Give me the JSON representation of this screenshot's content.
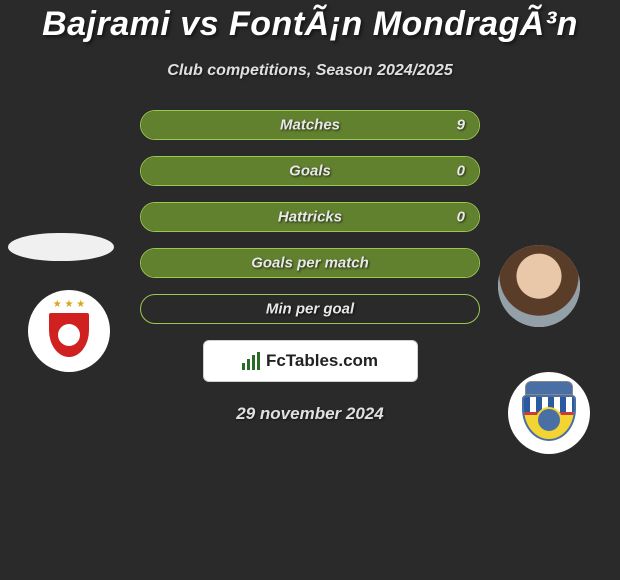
{
  "title": "Bajrami vs FontÃ¡n MondragÃ³n",
  "subtitle": "Club competitions, Season 2024/2025",
  "date": "29 november 2024",
  "brand": "FcTables.com",
  "colors": {
    "background": "#2a2a2a",
    "bar_border": "#9ac84f",
    "bar_fill": "#62812f",
    "text": "#ffffff"
  },
  "stats": [
    {
      "label": "Matches",
      "value": "9",
      "fill_pct": 100,
      "show_value": true
    },
    {
      "label": "Goals",
      "value": "0",
      "fill_pct": 100,
      "show_value": true
    },
    {
      "label": "Hattricks",
      "value": "0",
      "fill_pct": 100,
      "show_value": true
    },
    {
      "label": "Goals per match",
      "value": "",
      "fill_pct": 100,
      "show_value": false
    },
    {
      "label": "Min per goal",
      "value": "",
      "fill_pct": 0,
      "show_value": false
    }
  ],
  "players": {
    "left": {
      "player_name": "Bajrami",
      "club_name": "Benfica"
    },
    "right": {
      "player_name": "FontÃ¡n MondragÃ³n",
      "club_name": "Arouca"
    }
  }
}
